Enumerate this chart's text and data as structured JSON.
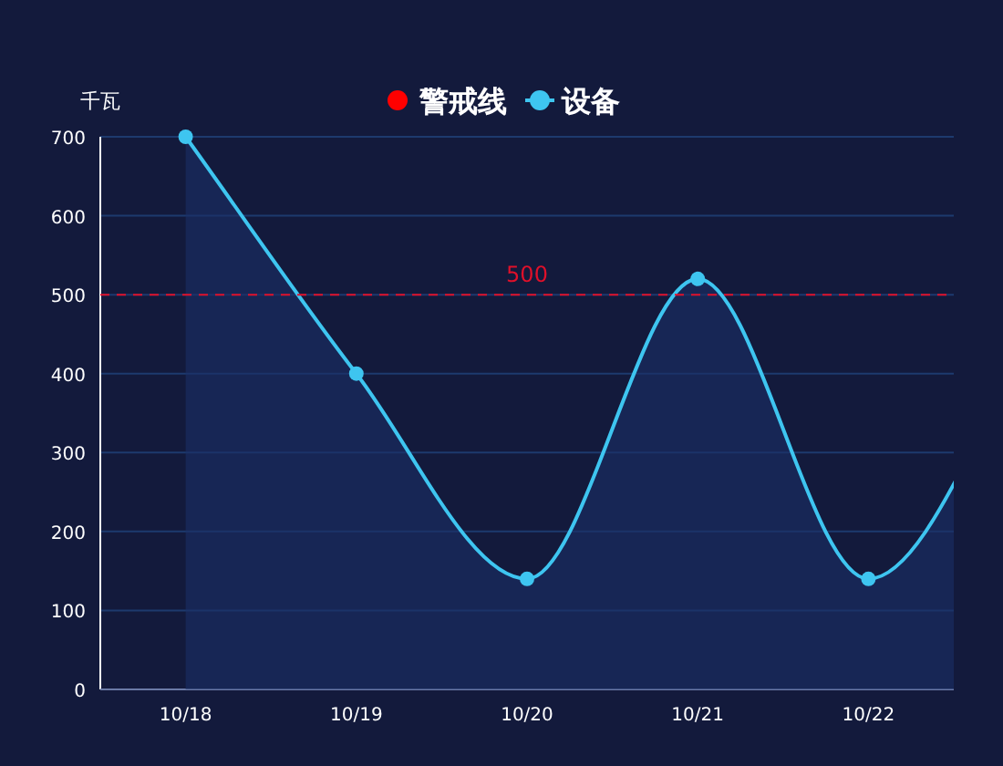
{
  "chart_data": {
    "type": "area",
    "ylabel": "千瓦",
    "categories": [
      "10/18",
      "10/19",
      "10/20",
      "10/21",
      "10/22",
      null
    ],
    "series": [
      {
        "name": "设备",
        "color": "#3ec5f0",
        "values": [
          700,
          400,
          140,
          520,
          140,
          460
        ]
      }
    ],
    "ylim": [
      0,
      700
    ],
    "yticks": [
      0,
      100,
      200,
      300,
      400,
      500,
      600,
      700
    ],
    "grid": "y",
    "legend": "top",
    "marker": "circle",
    "ref_lines": [
      {
        "axis": "y",
        "value": 500,
        "label": "500",
        "color": "#e0102a",
        "line_style": "dashed"
      }
    ],
    "annotations": [
      "警戒线"
    ]
  }
}
